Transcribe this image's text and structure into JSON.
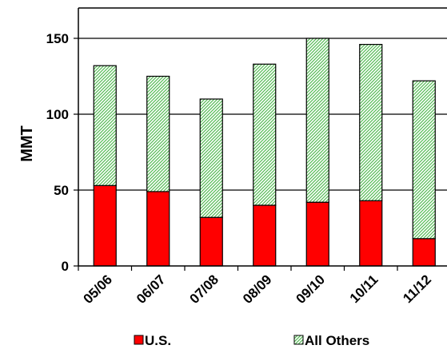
{
  "chart_data": {
    "type": "bar",
    "stacked": true,
    "categories": [
      "05/06",
      "06/07",
      "07/08",
      "08/09",
      "09/10",
      "10/11",
      "11/12"
    ],
    "series": [
      {
        "name": "U.S.",
        "values": [
          53,
          49,
          32,
          40,
          42,
          43,
          18
        ],
        "color": "#ff0000",
        "pattern": "solid"
      },
      {
        "name": "All Others",
        "values": [
          79,
          76,
          78,
          93,
          108,
          103,
          104
        ],
        "color": "#66cc66",
        "pattern": "diagonal-hatch"
      }
    ],
    "totals": [
      132,
      125,
      110,
      133,
      150,
      146,
      122
    ],
    "title": "",
    "xlabel": "",
    "ylabel": "MMT",
    "ylim": [
      0,
      170
    ],
    "yticks": [
      0,
      50,
      100,
      150
    ],
    "grid": "horizontal",
    "legend_position": "bottom"
  }
}
